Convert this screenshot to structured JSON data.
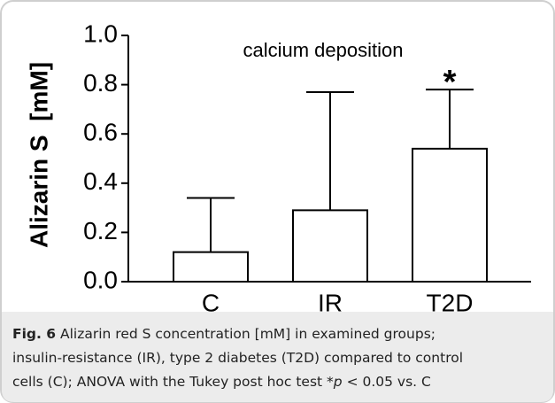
{
  "chart_data": {
    "type": "bar",
    "title": "calcium deposition",
    "y_label": "Alizarin S  [mM]",
    "categories": [
      "C",
      "IR",
      "T2D"
    ],
    "values": [
      0.12,
      0.29,
      0.54
    ],
    "errors": [
      0.22,
      0.48,
      0.24
    ],
    "color": "#ffffff",
    "ylim": [
      0,
      1.0
    ],
    "yticks": [
      {
        "value": 0,
        "label": "0.0"
      },
      0.2,
      0.4,
      0.6,
      0.8,
      {
        "value": 1.0,
        "label": "1.0"
      }
    ],
    "annotations": [
      {
        "category": 2,
        "text": "*"
      }
    ]
  },
  "caption": {
    "label": "Fig. 6",
    "line1": " Alizarin red S concentration [mM] in examined groups;",
    "line2": "insulin-resistance (IR), type 2 diabetes (T2D) compared to control",
    "line3_before": "cells (C); ANOVA with the Tukey post hoc test *",
    "line3_italic": "p",
    "line3_after": " < 0.05 vs. C"
  }
}
